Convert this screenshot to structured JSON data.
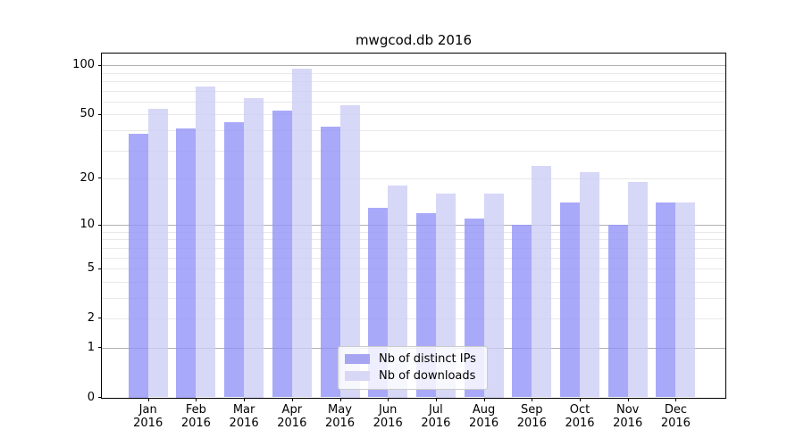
{
  "title": "mwgcod.db 2016",
  "colors": {
    "grid_minor": "#e8e8e8",
    "grid_major": "#b0b0b0",
    "spine": "#000000",
    "text": "#000000",
    "legend_border": "#cbcbcb",
    "legend_background": "rgba(255,255,255,0.8)",
    "series_dark": "#a5a5f2",
    "series_light": "#d8d8f6"
  },
  "legend": {
    "items": [
      {
        "label": "Nb of distinct IPs",
        "color": "#a5a5f2"
      },
      {
        "label": "Nb of downloads",
        "color": "#d8d8f6"
      }
    ]
  },
  "chart_data": {
    "type": "bar",
    "title": "mwgcod.db 2016",
    "categories": [
      "Jan",
      "Feb",
      "Mar",
      "Apr",
      "May",
      "Jun",
      "Jul",
      "Aug",
      "Sep",
      "Oct",
      "Nov",
      "Dec"
    ],
    "x_tick_second_line": "2016",
    "series": [
      {
        "name": "Nb of distinct IPs",
        "color": "#a5a5f2",
        "bar_fill": "rgba(148,148,248,0.8)",
        "values": [
          38,
          41,
          45,
          53,
          42,
          13,
          12,
          11,
          10,
          14,
          10,
          14
        ]
      },
      {
        "name": "Nb of downloads",
        "color": "#d8d8f6",
        "bar_fill": "rgba(205,205,245,0.8)",
        "values": [
          54,
          74,
          63,
          95,
          57,
          18,
          16,
          16,
          24,
          22,
          19,
          14
        ]
      }
    ],
    "xlabel": "",
    "ylabel": "",
    "yscale": "log1p",
    "ylim": [
      0,
      118
    ],
    "yticks": [
      0,
      1,
      2,
      5,
      10,
      20,
      50,
      100
    ],
    "major_gridlines": [
      1,
      10,
      100
    ],
    "minor_gridlines": [
      2,
      3,
      4,
      5,
      6,
      7,
      8,
      9,
      20,
      30,
      40,
      50,
      60,
      70,
      80,
      90
    ],
    "grid": true,
    "legend_position": "lower center"
  }
}
